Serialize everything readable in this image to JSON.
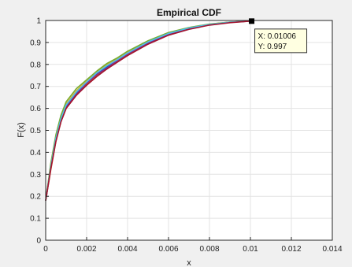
{
  "chart_data": {
    "type": "line",
    "title": "Empirical CDF",
    "xlabel": "x",
    "ylabel": "F(x)",
    "xlim": [
      0,
      0.014
    ],
    "ylim": [
      0,
      1
    ],
    "grid": true,
    "x_ticks": [
      "0",
      "0.002",
      "0.004",
      "0.006",
      "0.008",
      "0.01",
      "0.012",
      "0.014"
    ],
    "y_ticks": [
      "0",
      "0.1",
      "0.2",
      "0.3",
      "0.4",
      "0.5",
      "0.6",
      "0.7",
      "0.8",
      "0.9",
      "1"
    ],
    "series_colors": [
      "#0072bd",
      "#d95319",
      "#edb120",
      "#7e2f8e",
      "#77ac30",
      "#4dbeee",
      "#a2142f"
    ],
    "series": [
      {
        "color": "#0072bd",
        "x": [
          0,
          0.00025,
          0.0005,
          0.00075,
          0.001,
          0.0015,
          0.002,
          0.0025,
          0.003,
          0.0035,
          0.004,
          0.005,
          0.006,
          0.007,
          0.008,
          0.009,
          0.01,
          0.0101
        ],
        "y": [
          0.18,
          0.33,
          0.46,
          0.55,
          0.61,
          0.67,
          0.72,
          0.76,
          0.79,
          0.82,
          0.85,
          0.9,
          0.94,
          0.965,
          0.982,
          0.992,
          0.997,
          1.0
        ]
      },
      {
        "color": "#d95319",
        "x": [
          0,
          0.00025,
          0.0005,
          0.00075,
          0.001,
          0.0015,
          0.002,
          0.0025,
          0.003,
          0.0035,
          0.004,
          0.005,
          0.006,
          0.007,
          0.008,
          0.009,
          0.01,
          0.0101
        ],
        "y": [
          0.18,
          0.32,
          0.45,
          0.54,
          0.6,
          0.66,
          0.71,
          0.75,
          0.78,
          0.815,
          0.845,
          0.895,
          0.935,
          0.962,
          0.98,
          0.991,
          0.997,
          1.0
        ]
      },
      {
        "color": "#edb120",
        "x": [
          0,
          0.00025,
          0.0005,
          0.00075,
          0.001,
          0.0015,
          0.002,
          0.0025,
          0.003,
          0.0035,
          0.004,
          0.005,
          0.006,
          0.007,
          0.008,
          0.009,
          0.01,
          0.0101
        ],
        "y": [
          0.18,
          0.34,
          0.47,
          0.56,
          0.62,
          0.68,
          0.725,
          0.765,
          0.8,
          0.825,
          0.855,
          0.905,
          0.943,
          0.967,
          0.983,
          0.993,
          0.997,
          1.0
        ]
      },
      {
        "color": "#7e2f8e",
        "x": [
          0,
          0.00025,
          0.0005,
          0.00075,
          0.001,
          0.0015,
          0.002,
          0.0025,
          0.003,
          0.0035,
          0.004,
          0.005,
          0.006,
          0.007,
          0.008,
          0.009,
          0.01,
          0.0101
        ],
        "y": [
          0.18,
          0.33,
          0.455,
          0.545,
          0.605,
          0.665,
          0.715,
          0.755,
          0.785,
          0.818,
          0.848,
          0.898,
          0.938,
          0.963,
          0.981,
          0.992,
          0.997,
          1.0
        ]
      },
      {
        "color": "#77ac30",
        "x": [
          0,
          0.00025,
          0.0005,
          0.00075,
          0.001,
          0.0015,
          0.002,
          0.0025,
          0.003,
          0.0035,
          0.004,
          0.005,
          0.006,
          0.007,
          0.008,
          0.009,
          0.01,
          0.0101
        ],
        "y": [
          0.18,
          0.35,
          0.48,
          0.57,
          0.63,
          0.69,
          0.73,
          0.77,
          0.805,
          0.83,
          0.86,
          0.908,
          0.945,
          0.968,
          0.984,
          0.993,
          0.997,
          1.0
        ]
      },
      {
        "color": "#4dbeee",
        "x": [
          0,
          0.00025,
          0.0005,
          0.00075,
          0.001,
          0.0015,
          0.002,
          0.0025,
          0.003,
          0.0035,
          0.004,
          0.005,
          0.006,
          0.007,
          0.008,
          0.009,
          0.01,
          0.0101
        ],
        "y": [
          0.18,
          0.335,
          0.465,
          0.555,
          0.615,
          0.675,
          0.72,
          0.762,
          0.795,
          0.822,
          0.852,
          0.902,
          0.941,
          0.966,
          0.982,
          0.992,
          0.997,
          1.0
        ]
      },
      {
        "color": "#a2142f",
        "x": [
          0,
          0.00025,
          0.0005,
          0.00075,
          0.001,
          0.0015,
          0.002,
          0.0025,
          0.003,
          0.0035,
          0.004,
          0.005,
          0.006,
          0.007,
          0.008,
          0.009,
          0.01,
          0.0101
        ],
        "y": [
          0.18,
          0.325,
          0.45,
          0.54,
          0.6,
          0.66,
          0.705,
          0.745,
          0.78,
          0.81,
          0.84,
          0.892,
          0.933,
          0.96,
          0.979,
          0.99,
          0.997,
          1.0
        ]
      }
    ],
    "datatip": {
      "x": 0.01006,
      "y": 0.997,
      "x_text": "X: 0.01006",
      "y_text": "Y: 0.997"
    }
  }
}
